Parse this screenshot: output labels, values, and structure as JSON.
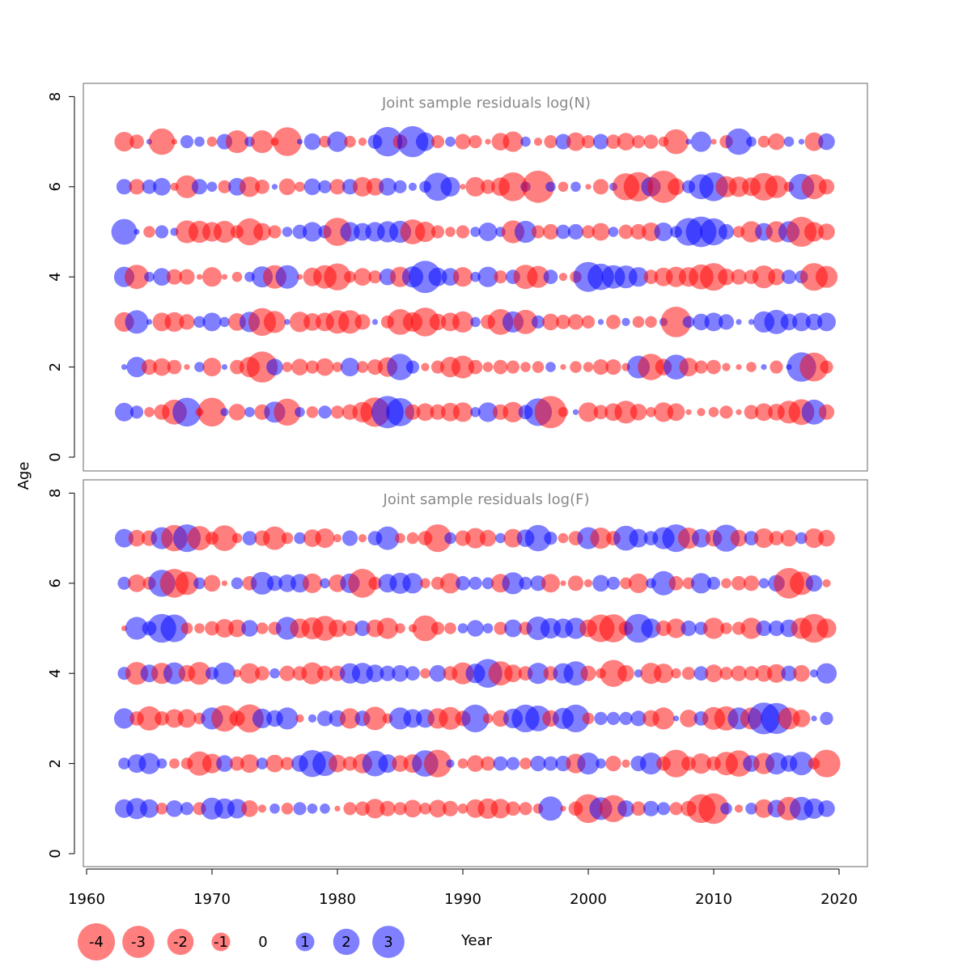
{
  "chart_data": {
    "type": "scatter",
    "subtype": "bubble",
    "xlabel": "Year",
    "ylabel": "Age",
    "xlim": [
      1960,
      2020
    ],
    "ylim": [
      0,
      8
    ],
    "x_ticks": [
      "1960",
      "1970",
      "1980",
      "1990",
      "2000",
      "2010",
      "2020"
    ],
    "y_ticks": [
      "0",
      "2",
      "4",
      "6",
      "8"
    ],
    "years": [
      1963,
      1964,
      1965,
      1966,
      1967,
      1968,
      1969,
      1970,
      1971,
      1972,
      1973,
      1974,
      1975,
      1976,
      1977,
      1978,
      1979,
      1980,
      1981,
      1982,
      1983,
      1984,
      1985,
      1986,
      1987,
      1988,
      1989,
      1990,
      1991,
      1992,
      1993,
      1994,
      1995,
      1996,
      1997,
      1998,
      1999,
      2000,
      2001,
      2002,
      2003,
      2004,
      2005,
      2006,
      2007,
      2008,
      2009,
      2010,
      2011,
      2012,
      2013,
      2014,
      2015,
      2016,
      2017,
      2018,
      2019
    ],
    "ages": [
      1,
      2,
      3,
      4,
      5,
      6,
      7
    ],
    "colors": {
      "negative": "#ff0000",
      "positive": "#0000ff",
      "opacity": 0.5
    },
    "panels": [
      {
        "title": "Joint sample residuals log(N)",
        "residuals": {
          "1": [
            1,
            0.5,
            -0.3,
            -0.7,
            -1.8,
            2.4,
            -0.2,
            -2.4,
            0.2,
            -0.8,
            0.3,
            -0.7,
            1.3,
            -2.1,
            0.3,
            -0.4,
            0.5,
            -0.5,
            -0.7,
            -1.2,
            -2.5,
            3,
            2.3,
            -0.7,
            -0.9,
            -0.7,
            -1,
            -1.1,
            0.3,
            1.1,
            -0.7,
            -1.2,
            0.6,
            2.2,
            -3,
            -0.3,
            0.1,
            -1.1,
            -0.6,
            -0.9,
            -1.5,
            -0.8,
            -0.3,
            -1.1,
            -0.9,
            -0.1,
            -0.2,
            -0.3,
            -0.5,
            -0.1,
            -0.6,
            -0.9,
            -0.8,
            -1.5,
            -1.9,
            1.8,
            -0.7
          ],
          "2": [
            0.1,
            1.2,
            -0.7,
            -0.9,
            -0.6,
            -0.1,
            0.3,
            -1,
            0.1,
            -0.6,
            -1.2,
            -2.8,
            0.8,
            -0.3,
            -0.8,
            -0.5,
            -0.9,
            -0.3,
            1,
            -0.4,
            -0.7,
            -1.1,
            2,
            0.5,
            -0.2,
            -0.5,
            -1.2,
            -1.5,
            -0.6,
            -0.3,
            -0.6,
            -0.5,
            -0.3,
            -0.4,
            0.3,
            -0.1,
            -0.4,
            -0.3,
            -0.7,
            -0.7,
            -0.2,
            1.5,
            -2,
            -0.8,
            1.8,
            -1,
            -0.5,
            -0.6,
            -0.2,
            -0.1,
            -0.3,
            0.1,
            -0.5,
            0.1,
            2.5,
            -2.4,
            -0.5
          ],
          "3": [
            -1.1,
            1.6,
            0.1,
            -1,
            -1.1,
            -0.7,
            0.4,
            1,
            0.3,
            -0.9,
            1.2,
            -2.2,
            -1.4,
            0.1,
            -1.2,
            -0.9,
            -1,
            -1.6,
            -1.6,
            -0.7,
            0.1,
            -0.5,
            -1.9,
            -1.1,
            -2.4,
            -0.8,
            -1,
            -1.3,
            0.3,
            -0.6,
            -1.9,
            1.3,
            -1.7,
            0.5,
            -0.8,
            -0.6,
            -0.7,
            -0.5,
            0.1,
            -0.6,
            0.2,
            -0.4,
            -0.4,
            0.2,
            -2.7,
            0.4,
            0.8,
            1,
            0.7,
            0.1,
            0.1,
            1.3,
            1.7,
            0.8,
            1,
            0.8,
            1
          ],
          "4": [
            1.2,
            -1.7,
            0.3,
            0.9,
            -0.7,
            -0.7,
            -0.1,
            -1.1,
            -0.1,
            -0.3,
            0.3,
            1.3,
            -1.6,
            1.6,
            -0.1,
            -1,
            -1.6,
            -2.1,
            -0.4,
            -0.9,
            -0.5,
            0.8,
            -1.2,
            1.3,
            3,
            1,
            0.9,
            -1.1,
            0.3,
            1.2,
            -0.5,
            0.6,
            -1.7,
            -1.4,
            0.6,
            -0.2,
            -0.4,
            2.6,
            2,
            1.6,
            1.5,
            1.1,
            -0.6,
            -1,
            -1.2,
            -1.1,
            -1.8,
            -2.2,
            -0.8,
            -0.7,
            -0.6,
            -1.5,
            -0.8,
            0.6,
            0.5,
            -2.2,
            -1.4
          ],
          "5": [
            1.9,
            0.1,
            -0.4,
            0.5,
            0.2,
            -1.5,
            -1.4,
            -1.1,
            -1.4,
            -0.5,
            -2.1,
            -0.9,
            -0.5,
            0.3,
            0.6,
            1.1,
            0.5,
            -2.3,
            1.1,
            0.9,
            1.1,
            1.3,
            1.4,
            -1.8,
            -1.2,
            -0.5,
            -0.3,
            -0.5,
            0.3,
            1,
            0.3,
            -1.5,
            1.4,
            -0.5,
            -0.7,
            0.6,
            0.7,
            -0.5,
            -0.9,
            0.3,
            -0.6,
            -0.7,
            -1,
            1,
            0.4,
            2.2,
            2.7,
            2.1,
            0.7,
            -0.4,
            -1.3,
            0.9,
            -1.3,
            1.3,
            -2.6,
            -1.1,
            -0.8
          ]
        }
      },
      {
        "title": "Joint sample residuals log(F)",
        "residuals": {
          "1": [
            1,
            1.3,
            1,
            -0.4,
            0.8,
            0.5,
            -0.5,
            1.4,
            1.2,
            1.1,
            -0.8,
            -0.2,
            0.3,
            -0.4,
            0.5,
            0.3,
            0.3,
            -0.1,
            -0.5,
            -0.6,
            -1.1,
            -0.7,
            -0.5,
            -0.9,
            -0.4,
            -0.9,
            -0.7,
            -0.3,
            -1,
            -1.2,
            -1.1,
            -0.6,
            -0.5,
            -0.3,
            1.7,
            -0.1,
            -0.6,
            -2.4,
            1.5,
            -2.1,
            0.8,
            -0.6,
            0.7,
            0.5,
            -0.5,
            -0.7,
            -2.4,
            -2.7,
            0.4,
            -0.2,
            0.4,
            -1,
            0.9,
            -1.6,
            1.6,
            1.2,
            0.8
          ],
          "2": [
            0.4,
            1,
            1.3,
            0.3,
            -0.3,
            -0.4,
            -1.7,
            -1.1,
            0.8,
            -0.6,
            -1,
            0.4,
            -0.9,
            -0.5,
            0.8,
            2.1,
            1.8,
            -0.9,
            -0.6,
            -1.1,
            1.9,
            1,
            -0.8,
            -1,
            2,
            -2.2,
            0.2,
            -0.3,
            -0.8,
            -0.6,
            0.6,
            0.5,
            -0.4,
            0.7,
            0.6,
            0.7,
            -1.1,
            1.4,
            0.3,
            -0.7,
            -0.2,
            0.7,
            1.4,
            -0.6,
            -2.2,
            -0.6,
            -1.2,
            -0.6,
            -1.6,
            -2,
            0.8,
            -1.3,
            1.4,
            0.8,
            1.6,
            -0.4,
            -2.2
          ],
          "3": [
            1.2,
            -0.6,
            -1.7,
            -0.6,
            -1,
            -1,
            -0.4,
            1.4,
            -2,
            -0.7,
            -2.3,
            1.1,
            0.8,
            1.4,
            -0.2,
            0.2,
            0.7,
            0.8,
            -1.2,
            0.7,
            -1.6,
            -0.3,
            1.4,
            1,
            1,
            -1.2,
            -1.5,
            -0.7,
            2.2,
            -0.3,
            -0.8,
            1.1,
            2.2,
            1.9,
            -0.8,
            1.3,
            2.2,
            -0.4,
            0.5,
            0.5,
            0.5,
            0.7,
            -0.8,
            -1.4,
            0.1,
            -0.9,
            0.6,
            -1.5,
            -1.7,
            1.4,
            -1.4,
            2.9,
            2.8,
            -1.4,
            -0.9,
            0.1,
            0.5
          ],
          "4": [
            0.5,
            -1.5,
            0.9,
            -1.3,
            1.4,
            -0.8,
            -1.5,
            0.5,
            1.4,
            -0.2,
            -1.2,
            -0.6,
            0.3,
            -0.7,
            -0.6,
            -1.4,
            -0.7,
            -0.7,
            1.2,
            1.3,
            0.9,
            0.7,
            0.8,
            0.6,
            -0.3,
            0.8,
            -0.6,
            -1.4,
            1.1,
            2.4,
            -1.7,
            -0.9,
            -0.6,
            1.3,
            -0.6,
            1.2,
            1.7,
            -0.7,
            -0.3,
            -2.1,
            -0.8,
            0.2,
            -1.3,
            -1.1,
            -0.3,
            -0.5,
            0.6,
            -0.9,
            -0.5,
            -0.7,
            -0.6,
            -0.8,
            -1,
            0.7,
            -0.8,
            0.2,
            1.2
          ],
          "5": [
            -0.1,
            1.5,
            0.6,
            2.4,
            2.2,
            -0.4,
            -0.3,
            -0.6,
            -1,
            -0.9,
            0.8,
            -0.4,
            -0.5,
            1.5,
            -1.1,
            -1.4,
            -1.8,
            -0.9,
            -0.7,
            0.7,
            -0.9,
            -1.3,
            -0.3,
            -0.2,
            -1.9,
            -0.5,
            -0.4,
            0.3,
            0.8,
            0.3,
            -0.5,
            0.9,
            -0.5,
            1.6,
            1.2,
            1.1,
            1.3,
            -0.9,
            -2.2,
            -2.3,
            -0.6,
            2.4,
            1.1,
            -0.7,
            -1.1,
            0.7,
            0.5,
            -1.3,
            -0.4,
            -0.5,
            -1.3,
            0.7,
            0.7,
            0.9,
            -1.3,
            -2.4,
            -1.1
          ]
        }
      }
    ],
    "legend": {
      "placement": "bottom-left",
      "entries": [
        {
          "label": "-4",
          "value": -4
        },
        {
          "label": "-3",
          "value": -3
        },
        {
          "label": "-2",
          "value": -2
        },
        {
          "label": "-1",
          "value": -1
        },
        {
          "label": "0",
          "value": 0
        },
        {
          "label": "1",
          "value": 1
        },
        {
          "label": "2",
          "value": 2
        },
        {
          "label": "3",
          "value": 3
        }
      ]
    }
  }
}
